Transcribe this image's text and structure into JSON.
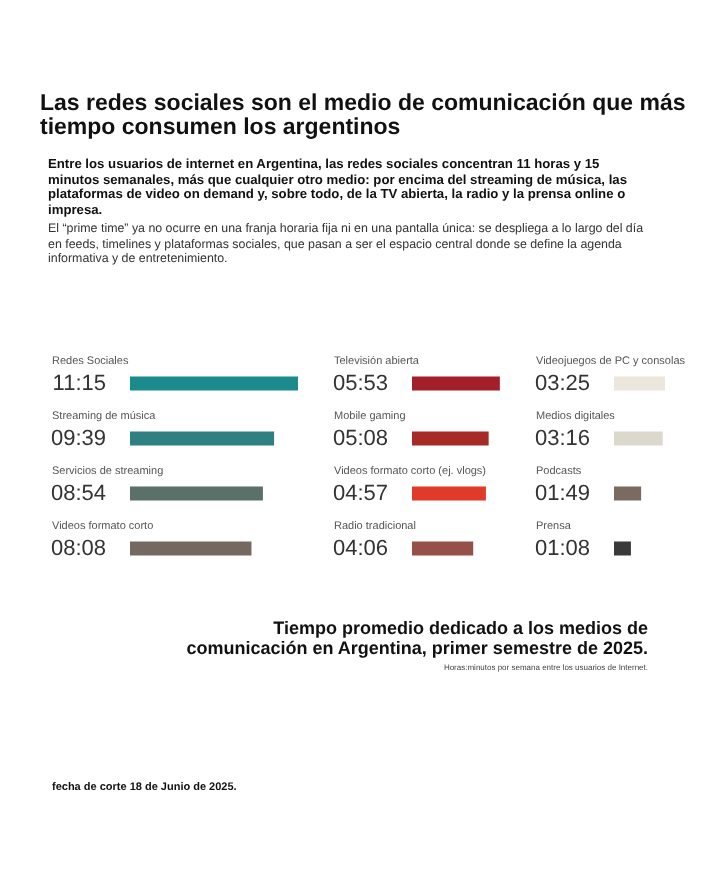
{
  "chart_data": [
    {
      "type": "bar",
      "orientation": "horizontal",
      "title": "Las redes sociales son el medio de comunicación que más tiempo consumen los argentinos",
      "subtitle": "Entre los usuarios de internet en Argentina, las redes sociales concentran 11 horas y 15 minutos semanales, más que cualquier otro medio: por encima del streaming de música, las plataformas de video on demand y, sobre todo, de la TV abierta, la radio y la prensa online o impresa.",
      "annotations": [
        "El “prime time” ya no ocurre en una franja horaria fija ni en una pantalla única: se despliega a lo largo del día en feeds, timelines y plataformas sociales, que pasan a ser el espacio central donde se define la agenda informativa y de entretenimiento.",
        "Tiempo promedio dedicado a los medios de comunicación en Argentina, primer semestre de 2025.",
        "Horas:minutos por semana entre los usuarios de Internet.",
        "fecha de corte 18 de Junio de 2025."
      ],
      "categories": [
        "Redes Sociales",
        "Streaming de música",
        "Servicios de streaming",
        "Videos formato corto"
      ],
      "values": [
        11.25,
        9.65,
        8.9,
        8.133
      ],
      "value_labels": [
        "11:15",
        "09:39",
        "08:54",
        "08:08"
      ],
      "colors": [
        "#1a8a8c",
        "#2f8080",
        "#5a7068",
        "#756860"
      ]
    },
    {
      "type": "bar",
      "orientation": "horizontal",
      "categories": [
        "Televisión abierta",
        "Mobile gaming",
        "Videos formato corto (ej. vlogs)",
        "Radio tradicional"
      ],
      "values": [
        5.883,
        5.133,
        4.95,
        4.1
      ],
      "value_labels": [
        "05:53",
        "05:08",
        "04:57",
        "04:06"
      ],
      "colors": [
        "#a3202a",
        "#a82a26",
        "#e03a28",
        "#955048"
      ]
    },
    {
      "type": "bar",
      "orientation": "horizontal",
      "categories": [
        "Videojuegos de PC y consolas",
        "Medios digitales",
        "Podcasts",
        "Prensa"
      ],
      "values": [
        3.417,
        3.267,
        1.817,
        1.133
      ],
      "value_labels": [
        "03:25",
        "03:16",
        "01:49",
        "01:08"
      ],
      "colors": [
        "#ece6dc",
        "#ddd8cc",
        "#7a6a60",
        "#3a3a3a"
      ]
    }
  ]
}
